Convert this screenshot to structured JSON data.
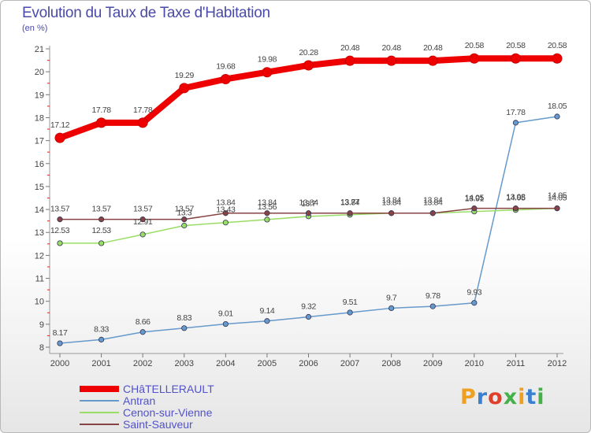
{
  "header": {
    "title": "Evolution du Taux de Taxe d'Habitation",
    "unit": "(en %)"
  },
  "brand": {
    "text": "Proxiti",
    "colors": [
      "#f0a020",
      "#3a7fd0",
      "#e0402a",
      "#45b04a",
      "#f0a020",
      "#3a7fd0",
      "#45b04a"
    ]
  },
  "chart_data": {
    "type": "line",
    "title": "Evolution du Taux de Taxe d'Habitation",
    "xlabel": "",
    "ylabel": "(en %)",
    "x": [
      2000,
      2001,
      2002,
      2003,
      2004,
      2005,
      2006,
      2007,
      2008,
      2009,
      2010,
      2011,
      2012
    ],
    "ylim": [
      8,
      21
    ],
    "yticks": [
      8,
      9,
      10,
      11,
      12,
      13,
      14,
      15,
      16,
      17,
      18,
      19,
      20,
      21
    ],
    "grid": false,
    "legend_position": "bottom-left",
    "series": [
      {
        "name": "CHâTELLERAULT",
        "color": "#ee0000",
        "values": [
          17.12,
          17.78,
          17.78,
          19.29,
          19.68,
          19.98,
          20.28,
          20.48,
          20.48,
          20.48,
          20.58,
          20.58,
          20.58
        ],
        "labels": [
          "17.12",
          "17.78",
          "17.78",
          "19.29",
          "19.68",
          "19.98",
          "20.28",
          "20.48",
          "20.48",
          "20.48",
          "20.58",
          "20.58",
          "20.58"
        ]
      },
      {
        "name": "Antran",
        "color": "#6699cc",
        "values": [
          8.17,
          8.33,
          8.66,
          8.83,
          9.01,
          9.14,
          9.32,
          9.51,
          9.7,
          9.78,
          9.93,
          17.78,
          18.05
        ],
        "labels": [
          "8.17",
          "8.33",
          "8.66",
          "8.83",
          "9.01",
          "9.14",
          "9.32",
          "9.51",
          "9.7",
          "9.78",
          "9.93",
          "17.78",
          "18.05"
        ]
      },
      {
        "name": "Cenon-sur-Vienne",
        "color": "#99dd66",
        "values": [
          12.53,
          12.53,
          12.91,
          13.3,
          13.43,
          13.56,
          13.7,
          13.77,
          13.84,
          13.84,
          13.91,
          13.98,
          14.05
        ],
        "labels": [
          "12.53",
          "12.53",
          "12.91",
          "13.3",
          "13.43",
          "13.56",
          "13.7",
          "13.77",
          "13.84",
          "13.84",
          "13.91",
          "13.98",
          "14.05"
        ]
      },
      {
        "name": "Saint-Sauveur",
        "color": "#884444",
        "values": [
          13.57,
          13.57,
          13.57,
          13.57,
          13.84,
          13.84,
          13.84,
          13.84,
          13.84,
          13.84,
          14.05,
          14.05,
          14.05
        ],
        "labels": [
          "13.57",
          "13.57",
          "13.57",
          "13.57",
          "13.84",
          "13.84",
          "13.84",
          "13.84",
          "13.84",
          "13.84",
          "14.05",
          "14.05",
          "14.05"
        ]
      }
    ]
  }
}
